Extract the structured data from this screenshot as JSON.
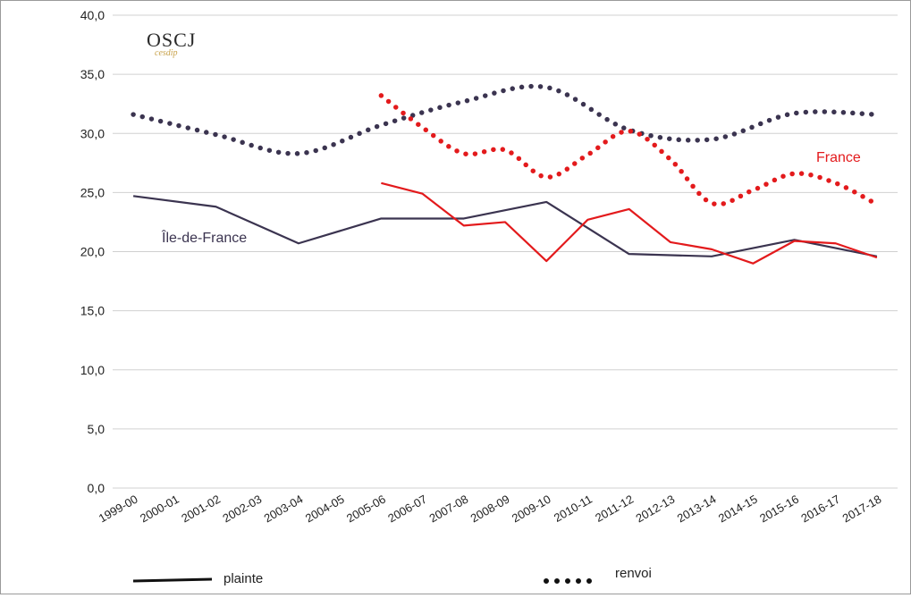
{
  "logo": {
    "main": "OSCJ",
    "sub": "cesdip"
  },
  "legend": {
    "solid_label": "plainte",
    "dotted_label": "renvoi"
  },
  "chart_data": {
    "type": "line",
    "categories": [
      "1999-00",
      "2000-01",
      "2001-02",
      "2002-03",
      "2003-04",
      "2004-05",
      "2005-06",
      "2006-07",
      "2007-08",
      "2008-09",
      "2009-10",
      "2010-11",
      "2011-12",
      "2012-13",
      "2013-14",
      "2014-15",
      "2015-16",
      "2016-17",
      "2017-18"
    ],
    "ylim": [
      0,
      40
    ],
    "yticks": [
      "0,0",
      "5,0",
      "10,0",
      "15,0",
      "20,0",
      "25,0",
      "30,0",
      "35,0",
      "40,0"
    ],
    "grid": true,
    "annotations": {
      "france": "France",
      "idf": "Île-de-France"
    },
    "series": [
      {
        "region": "Île-de-France",
        "measure": "renvoi",
        "style": "dotted",
        "color": "#3b3450",
        "values": [
          31.6,
          null,
          29.9,
          null,
          28.3,
          null,
          30.7,
          null,
          32.7,
          null,
          33.9,
          null,
          30.3,
          null,
          29.5,
          null,
          31.7,
          null,
          31.6
        ]
      },
      {
        "region": "France",
        "measure": "renvoi",
        "style": "dotted",
        "color": "#e31a1c",
        "values": [
          null,
          null,
          null,
          null,
          null,
          null,
          33.2,
          30.5,
          28.3,
          28.6,
          26.3,
          28.2,
          30.2,
          27.8,
          24.1,
          25.2,
          26.6,
          25.8,
          24.0
        ]
      },
      {
        "region": "Île-de-France",
        "measure": "plainte",
        "style": "solid",
        "color": "#3b3450",
        "values": [
          24.7,
          null,
          23.8,
          null,
          20.7,
          null,
          22.8,
          null,
          22.8,
          null,
          24.2,
          null,
          19.8,
          null,
          19.6,
          null,
          21.0,
          null,
          19.6
        ]
      },
      {
        "region": "France",
        "measure": "plainte",
        "style": "solid",
        "color": "#e31a1c",
        "values": [
          null,
          null,
          null,
          null,
          null,
          null,
          25.8,
          24.9,
          22.2,
          22.5,
          19.2,
          22.7,
          23.6,
          20.8,
          20.2,
          19.0,
          20.9,
          20.7,
          19.5
        ]
      }
    ]
  }
}
